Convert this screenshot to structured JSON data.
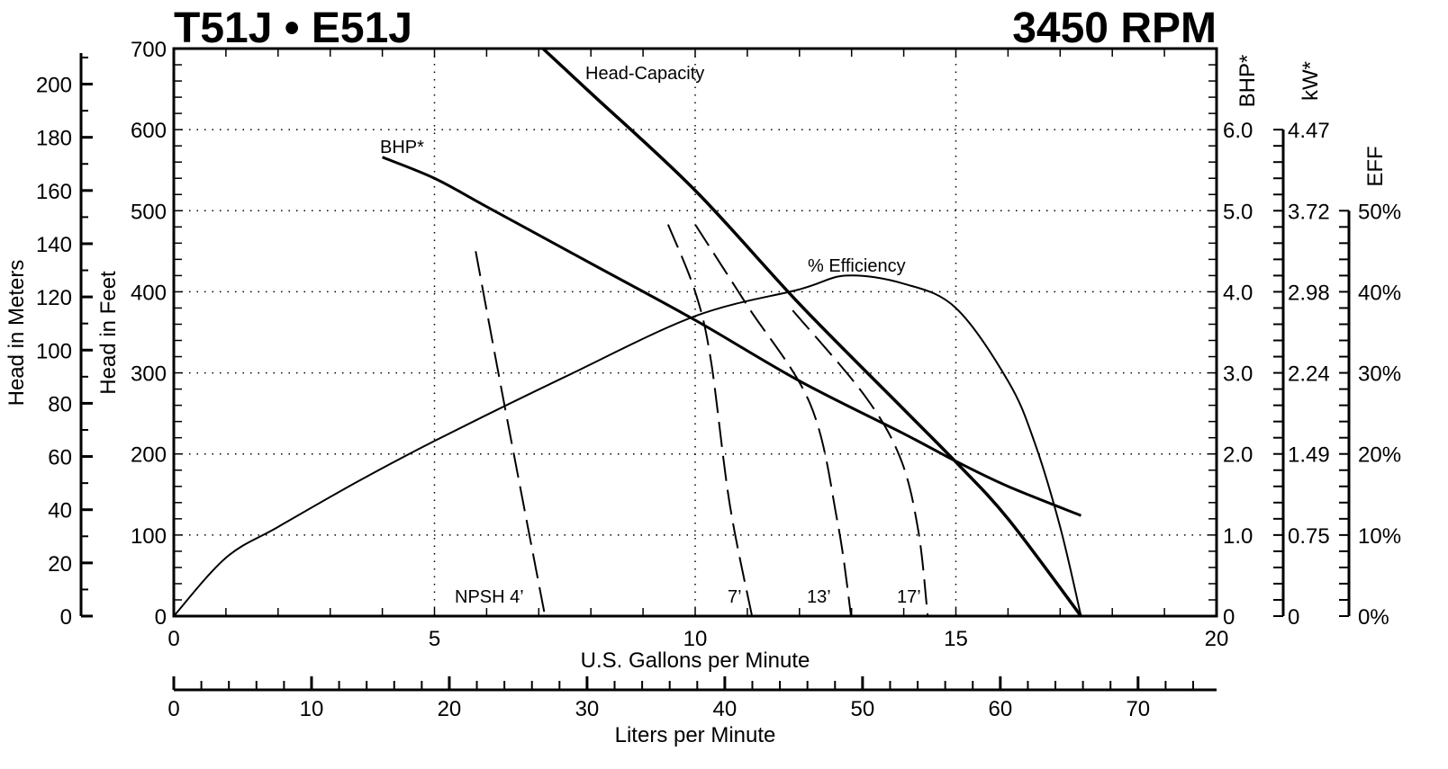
{
  "header": {
    "title": "T51J • E51J",
    "speed": "3450 RPM"
  },
  "chart_data": {
    "type": "line",
    "title": "T51J • E51J",
    "subtitle": "3450 RPM",
    "xlabel": "U.S. Gallons per Minute",
    "x2label": "Liters per Minute",
    "ylabel": "Head in Feet",
    "y2label": "Head in Meters",
    "right_axis_labels": {
      "bhp": "BHP*",
      "kw": "kW*",
      "eff": "EFF"
    },
    "xlim": [
      0,
      20
    ],
    "ylim": [
      0,
      700
    ],
    "x2lim": [
      0,
      75.7
    ],
    "grid": true,
    "x_ticks": [
      "0",
      "5",
      "10",
      "15",
      "20"
    ],
    "x2_ticks": [
      "0",
      "10",
      "20",
      "30",
      "40",
      "50",
      "60",
      "70"
    ],
    "y_ticks": [
      "0",
      "100",
      "200",
      "300",
      "400",
      "500",
      "600",
      "700"
    ],
    "meters_ticks": [
      "0",
      "20",
      "40",
      "60",
      "80",
      "100",
      "120",
      "140",
      "160",
      "180",
      "200"
    ],
    "bhp_ticks": [
      "1.0",
      "2.0",
      "3.0",
      "4.0",
      "5.0",
      "6.0"
    ],
    "bhp_zero": "0",
    "kw_ticks": [
      "0",
      "0.75",
      "1.49",
      "2.24",
      "2.98",
      "3.72",
      "4.47"
    ],
    "eff_ticks": [
      "0%",
      "10%",
      "20%",
      "30%",
      "40%",
      "50%"
    ],
    "series": [
      {
        "name": "Head-Capacity",
        "axis": "feet",
        "style": "solid-bold",
        "x": [
          7.08,
          8,
          10,
          12,
          14,
          15,
          16,
          17.4
        ],
        "y": [
          700,
          645,
          525,
          385,
          255,
          190,
          120,
          0
        ]
      },
      {
        "name": "BHP*",
        "axis": "bhp",
        "style": "solid",
        "x": [
          4,
          5,
          6,
          8,
          10,
          12,
          14,
          15,
          16,
          17.4
        ],
        "y": [
          5.66,
          5.4,
          5.05,
          4.35,
          3.65,
          2.9,
          2.25,
          1.91,
          1.6,
          1.24
        ]
      },
      {
        "name": "% Efficiency",
        "axis": "eff",
        "style": "solid-thin",
        "x": [
          0,
          1,
          2,
          3.5,
          5,
          7.5,
          10,
          12,
          12.9,
          14,
          15,
          16,
          16.5,
          17,
          17.4
        ],
        "y": [
          0,
          7.2,
          11,
          16.5,
          21.6,
          29.5,
          37,
          40.3,
          42,
          41,
          38,
          29,
          21.6,
          11,
          0
        ]
      },
      {
        "name": "NPSH 4’",
        "axis": "feet",
        "style": "dashed",
        "x": [
          5.79,
          6.34,
          7.12
        ],
        "y": [
          450,
          261,
          0
        ]
      },
      {
        "name": "7’",
        "axis": "feet",
        "style": "dashed",
        "x": [
          9.48,
          10.0,
          10.3,
          10.66,
          11.09
        ],
        "y": [
          483,
          400,
          316,
          139,
          0
        ]
      },
      {
        "name": "13’",
        "axis": "feet",
        "style": "dashed",
        "x": [
          10.0,
          11.0,
          12.21,
          12.73,
          12.99
        ],
        "y": [
          483,
          383,
          261,
          116,
          0
        ]
      },
      {
        "name": "17’",
        "axis": "feet",
        "style": "dashed",
        "x": [
          11.87,
          13.25,
          13.94,
          14.28,
          14.46
        ],
        "y": [
          377,
          272,
          194,
          105,
          0
        ]
      }
    ]
  }
}
